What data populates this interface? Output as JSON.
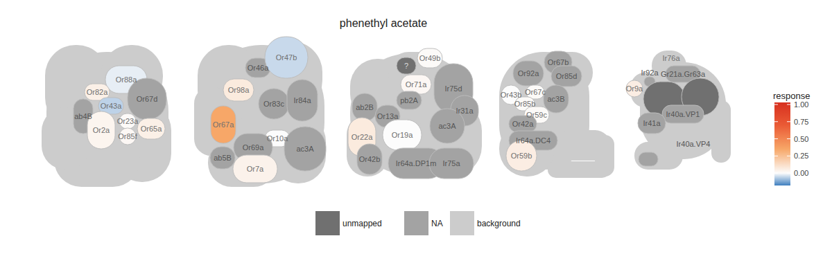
{
  "chart_data": {
    "type": "glomerulus_map",
    "title": "phenethyl acetate",
    "lobes": [
      {
        "glomeruli": [
          {
            "label": "Or88a",
            "response": -0.02
          },
          {
            "label": "Or82a",
            "response": 0.05
          },
          {
            "label": "Or43a",
            "response": -0.06
          },
          {
            "label": "Or67d",
            "response": null
          },
          {
            "label": "ab4B",
            "response": null
          },
          {
            "label": "Or2a",
            "response": 0.03
          },
          {
            "label": "Or23a",
            "response": 0.01
          },
          {
            "label": "Or85f",
            "response": 0.02
          },
          {
            "label": "Or65a",
            "response": 0.05
          }
        ]
      },
      {
        "glomeruli": [
          {
            "label": "Or46a",
            "response": null
          },
          {
            "label": "Or47b",
            "response": -0.05
          },
          {
            "label": "Or98a",
            "response": 0.07
          },
          {
            "label": "Or83c",
            "response": null
          },
          {
            "label": "Ir84a",
            "response": null
          },
          {
            "label": "Or67a",
            "response": 0.35
          },
          {
            "label": "Or10a",
            "response": 0.0
          },
          {
            "label": "Or69a",
            "response": null
          },
          {
            "label": "ab5B",
            "response": null
          },
          {
            "label": "Or7a",
            "response": 0.04
          },
          {
            "label": "ac3A",
            "response": null
          }
        ]
      },
      {
        "glomeruli": [
          {
            "label": "?",
            "response": null,
            "mapped": false
          },
          {
            "label": "Or49b",
            "response": 0.01
          },
          {
            "label": "Or71a",
            "response": 0.02
          },
          {
            "label": "Ir75d",
            "response": null
          },
          {
            "label": "pb2A",
            "response": null
          },
          {
            "label": "Ir31a",
            "response": null
          },
          {
            "label": "ab2B",
            "response": null
          },
          {
            "label": "Or13a",
            "response": null
          },
          {
            "label": "ac3A",
            "response": null
          },
          {
            "label": "Or19a",
            "response": 0.0
          },
          {
            "label": "Or22a",
            "response": 0.07
          },
          {
            "label": "Or42b",
            "response": null
          },
          {
            "label": "Ir64a.DP1m",
            "response": null
          },
          {
            "label": "Ir75a",
            "response": null
          }
        ]
      },
      {
        "glomeruli": [
          {
            "label": "Or67b",
            "response": null
          },
          {
            "label": "Or92a",
            "response": null
          },
          {
            "label": "Or85d",
            "response": null
          },
          {
            "label": "Or43b",
            "response": 0.0
          },
          {
            "label": "Or67c",
            "response": 0.01
          },
          {
            "label": "Or85b",
            "response": 0.01
          },
          {
            "label": "ac3B",
            "response": null
          },
          {
            "label": "Or59c",
            "response": 0.01
          },
          {
            "label": "Or42a",
            "response": null
          },
          {
            "label": "Ir64a.DC4",
            "response": null
          },
          {
            "label": "Or59b",
            "response": 0.06
          }
        ]
      },
      {
        "glomeruli": [
          {
            "label": "Ir92a",
            "response": null
          },
          {
            "label": "Or9a",
            "response": 0.06
          },
          {
            "label": "Gr21a.Gr63a",
            "response": null
          },
          {
            "response": null,
            "mapped": false
          },
          {
            "response": null,
            "mapped": false
          },
          {
            "label": "Ir40a.VP1",
            "response": null
          },
          {
            "label": "Ir41a",
            "response": null
          },
          {
            "label": "Ir40a.VP4",
            "response": null
          }
        ],
        "background_labels": [
          "Ir76a"
        ]
      }
    ],
    "legend": [
      {
        "label": "unmapped",
        "color": "#707070"
      },
      {
        "label": "NA",
        "color": "#a3a3a3"
      },
      {
        "label": "background",
        "color": "#cccccc"
      }
    ],
    "colorbar": {
      "title": "response",
      "range": [
        -0.18,
        1.03
      ],
      "ticks": [
        {
          "value": 0,
          "label": "0.00"
        },
        {
          "value": 0.25,
          "label": "0.25"
        },
        {
          "value": 0.5,
          "label": "0.50"
        },
        {
          "value": 0.75,
          "label": "0.75"
        },
        {
          "value": 1,
          "label": "1.00"
        }
      ],
      "stops": [
        -0.18,
        0,
        0.35,
        0.7,
        1.03
      ],
      "colors": [
        "#3f7fbf",
        "#fcfcfc",
        "#f7a768",
        "#ea5a35",
        "#d7301f"
      ]
    }
  }
}
